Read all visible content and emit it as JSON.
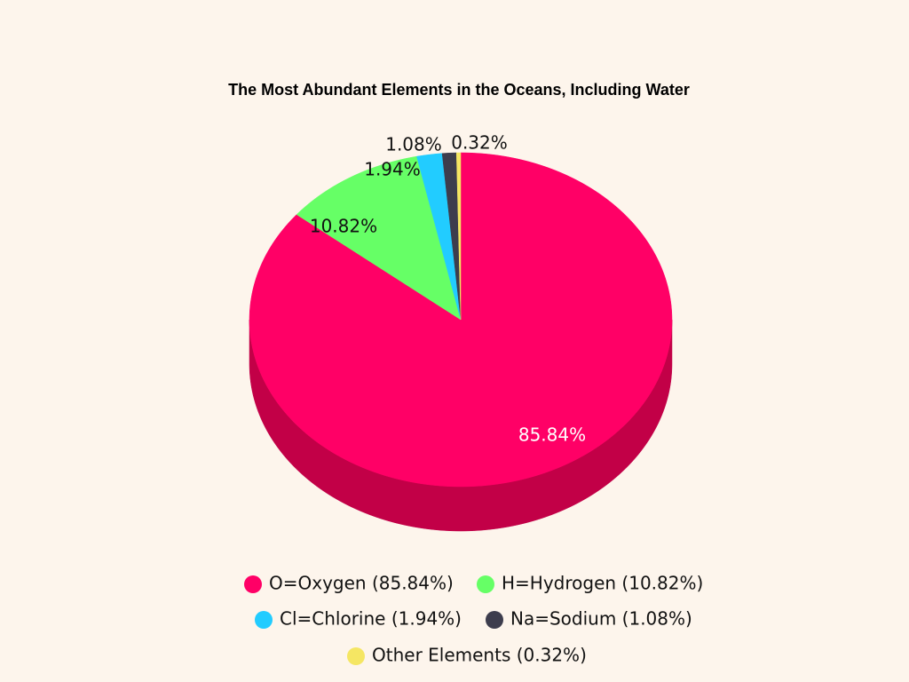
{
  "chart_data": {
    "type": "pie",
    "title": "The Most Abundant Elements in the Oceans, Including Water",
    "categories": [
      "O=Oxygen (85.84%)",
      "H=Hydrogen (10.82%)",
      "Cl=Chlorine (1.94%)",
      "Na=Sodium (1.08%)",
      "Other Elements (0.32%)"
    ],
    "values": [
      85.84,
      10.82,
      1.94,
      1.08,
      0.32
    ],
    "value_labels": [
      "85.84%",
      "10.82%",
      "1.94%",
      "1.08%",
      "0.32%"
    ],
    "colors": [
      "#ff0066",
      "#66ff66",
      "#22ccff",
      "#3d3d4d",
      "#f5e663"
    ],
    "side_colors": [
      "#c20047",
      "#44c944",
      "#1799c2",
      "#2a2a36",
      "#c2b448"
    ]
  }
}
